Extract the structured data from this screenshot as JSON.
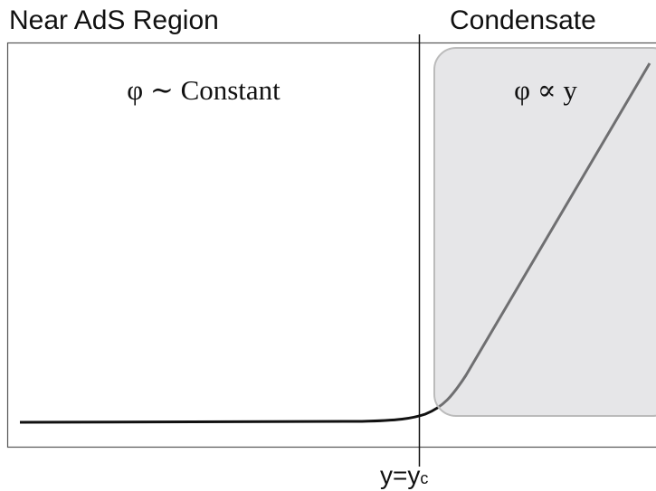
{
  "header": {
    "left_region": "Near AdS Region",
    "right_region": "Condensate"
  },
  "labels": {
    "left_formula": "φ ∼ Constant",
    "right_formula": "φ ∝ y",
    "boundary": "y=y",
    "boundary_subscript": "c"
  }
}
